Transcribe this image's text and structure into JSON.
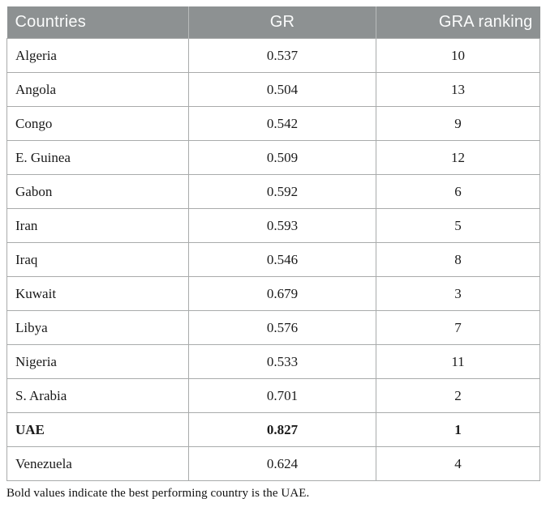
{
  "table": {
    "columns": [
      {
        "label": "Countries"
      },
      {
        "label": "GR"
      },
      {
        "label": "GRA ranking"
      }
    ],
    "rows": [
      {
        "country": "Algeria",
        "gr": "0.537",
        "rank": "10",
        "bold": false
      },
      {
        "country": "Angola",
        "gr": "0.504",
        "rank": "13",
        "bold": false
      },
      {
        "country": "Congo",
        "gr": "0.542",
        "rank": "9",
        "bold": false
      },
      {
        "country": "E. Guinea",
        "gr": "0.509",
        "rank": "12",
        "bold": false
      },
      {
        "country": "Gabon",
        "gr": "0.592",
        "rank": "6",
        "bold": false
      },
      {
        "country": "Iran",
        "gr": "0.593",
        "rank": "5",
        "bold": false
      },
      {
        "country": "Iraq",
        "gr": "0.546",
        "rank": "8",
        "bold": false
      },
      {
        "country": "Kuwait",
        "gr": "0.679",
        "rank": "3",
        "bold": false
      },
      {
        "country": "Libya",
        "gr": "0.576",
        "rank": "7",
        "bold": false
      },
      {
        "country": "Nigeria",
        "gr": "0.533",
        "rank": "11",
        "bold": false
      },
      {
        "country": "S. Arabia",
        "gr": "0.701",
        "rank": "2",
        "bold": false
      },
      {
        "country": "UAE",
        "gr": "0.827",
        "rank": "1",
        "bold": true
      },
      {
        "country": "Venezuela",
        "gr": "0.624",
        "rank": "4",
        "bold": false
      }
    ]
  },
  "footnote": "Bold values indicate the best performing country is the UAE.",
  "colors": {
    "header_bg": "#8d9192",
    "header_text": "#fafbfb",
    "border": "#a9abab",
    "header_divider": "#b8bbbb",
    "body_text": "#1a1a1a"
  }
}
